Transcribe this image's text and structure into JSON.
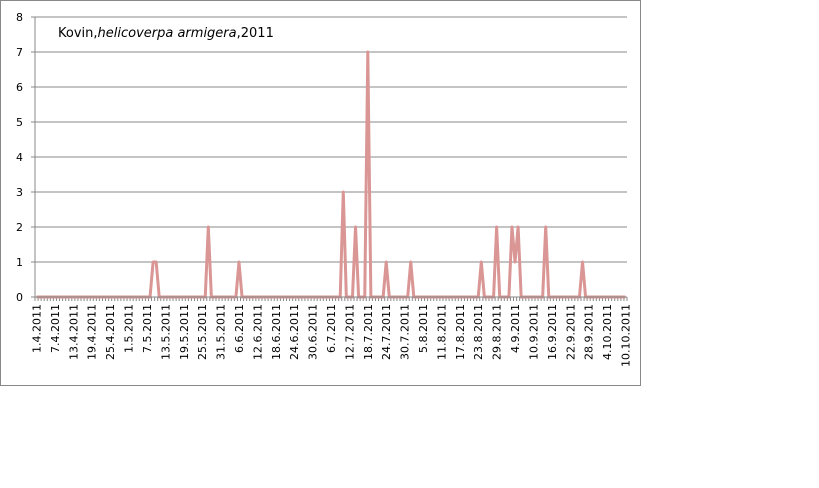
{
  "chart_data": {
    "type": "line",
    "title_parts": [
      "Kovin,",
      "helicoverpa armigera",
      ",2011"
    ],
    "categories": [
      "1.4.2011",
      null,
      null,
      null,
      null,
      null,
      "7.4.2011",
      null,
      null,
      null,
      null,
      null,
      "13.4.2011",
      null,
      null,
      null,
      null,
      null,
      "19.4.2011",
      null,
      null,
      null,
      null,
      null,
      "25.4.2011",
      null,
      null,
      null,
      null,
      null,
      "1.5.2011",
      null,
      null,
      null,
      null,
      null,
      "7.5.2011",
      null,
      null,
      null,
      null,
      null,
      "13.5.2011",
      null,
      null,
      null,
      null,
      null,
      "19.5.2011",
      null,
      null,
      null,
      null,
      null,
      "25.5.2011",
      null,
      null,
      null,
      null,
      null,
      "31.5.2011",
      null,
      null,
      null,
      null,
      null,
      "6.6.2011",
      null,
      null,
      null,
      null,
      null,
      "12.6.2011",
      null,
      null,
      null,
      null,
      null,
      "18.6.2011",
      null,
      null,
      null,
      null,
      null,
      "24.6.2011",
      null,
      null,
      null,
      null,
      null,
      "30.6.2011",
      null,
      null,
      null,
      null,
      null,
      "6.7.2011",
      null,
      null,
      null,
      null,
      null,
      "12.7.2011",
      null,
      null,
      null,
      null,
      null,
      "18.7.2011",
      null,
      null,
      null,
      null,
      null,
      "24.7.2011",
      null,
      null,
      null,
      null,
      null,
      "30.7.2011",
      null,
      null,
      null,
      null,
      null,
      "5.8.2011",
      null,
      null,
      null,
      null,
      null,
      "11.8.2011",
      null,
      null,
      null,
      null,
      null,
      "17.8.2011",
      null,
      null,
      null,
      null,
      null,
      "23.8.2011",
      null,
      null,
      null,
      null,
      null,
      "29.8.2011",
      null,
      null,
      null,
      null,
      null,
      "4.9.2011",
      null,
      null,
      null,
      null,
      null,
      "10.9.2011",
      null,
      null,
      null,
      null,
      null,
      "16.9.2011",
      null,
      null,
      null,
      null,
      null,
      "22.9.2011",
      null,
      null,
      null,
      null,
      null,
      "28.9.2011",
      null,
      null,
      null,
      null,
      null,
      "4.10.2011",
      null,
      null,
      null,
      null,
      null,
      "10.10.2011"
    ],
    "series": [
      {
        "color": "#d99694",
        "values": [
          0,
          0,
          0,
          0,
          0,
          0,
          0,
          0,
          0,
          0,
          0,
          0,
          0,
          0,
          0,
          0,
          0,
          0,
          0,
          0,
          0,
          0,
          0,
          0,
          0,
          0,
          0,
          0,
          0,
          0,
          0,
          0,
          0,
          0,
          0,
          0,
          0,
          0,
          1,
          1,
          0,
          0,
          0,
          0,
          0,
          0,
          0,
          0,
          0,
          0,
          0,
          0,
          0,
          0,
          0,
          0,
          2,
          0,
          0,
          0,
          0,
          0,
          0,
          0,
          0,
          0,
          1,
          0,
          0,
          0,
          0,
          0,
          0,
          0,
          0,
          0,
          0,
          0,
          0,
          0,
          0,
          0,
          0,
          0,
          0,
          0,
          0,
          0,
          0,
          0,
          0,
          0,
          0,
          0,
          0,
          0,
          0,
          0,
          0,
          0,
          3,
          0,
          0,
          0,
          2,
          0,
          0,
          0,
          7,
          0,
          0,
          0,
          0,
          0,
          1,
          0,
          0,
          0,
          0,
          0,
          0,
          0,
          1,
          0,
          0,
          0,
          0,
          0,
          0,
          0,
          0,
          0,
          0,
          0,
          0,
          0,
          0,
          0,
          0,
          0,
          0,
          0,
          0,
          0,
          0,
          1,
          0,
          0,
          0,
          0,
          2,
          0,
          0,
          0,
          0,
          2,
          1,
          2,
          0,
          0,
          0,
          0,
          0,
          0,
          0,
          0,
          2,
          0,
          0,
          0,
          0,
          0,
          0,
          0,
          0,
          0,
          0,
          0,
          1,
          0,
          0,
          0,
          0,
          0,
          0,
          0,
          0,
          0,
          0,
          0,
          0,
          0,
          0
        ]
      }
    ],
    "ylim": [
      0,
      8
    ],
    "yticks": [
      0,
      1,
      2,
      3,
      4,
      5,
      6,
      7,
      8
    ],
    "grid": true
  }
}
